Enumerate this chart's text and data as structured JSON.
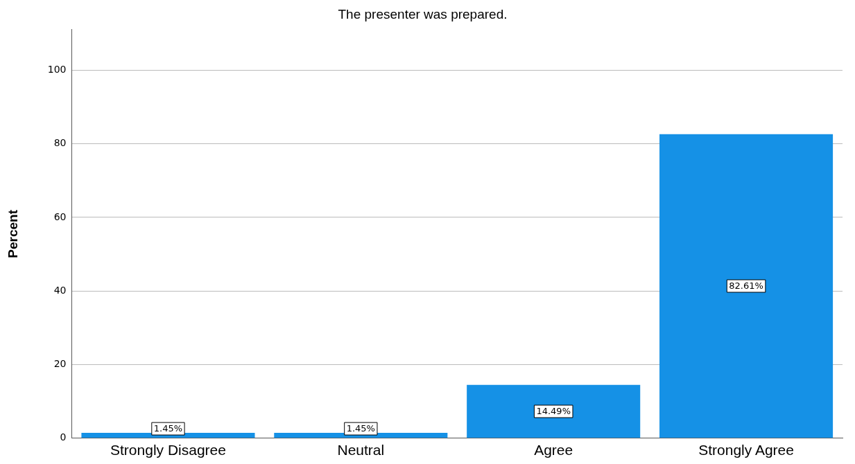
{
  "chart_data": {
    "type": "bar",
    "title": "The presenter was prepared.",
    "ylabel": "Percent",
    "categories": [
      "Strongly Disagree",
      "Neutral",
      "Agree",
      "Strongly Agree"
    ],
    "values": [
      1.45,
      1.45,
      14.49,
      82.61
    ],
    "value_labels": [
      "1.45%",
      "1.45%",
      "14.49%",
      "82.61%"
    ],
    "color": "#1591e6",
    "ylim": [
      0,
      111
    ],
    "yticks": [
      0,
      20,
      40,
      60,
      80,
      100
    ],
    "grid": "y",
    "legend": false
  }
}
